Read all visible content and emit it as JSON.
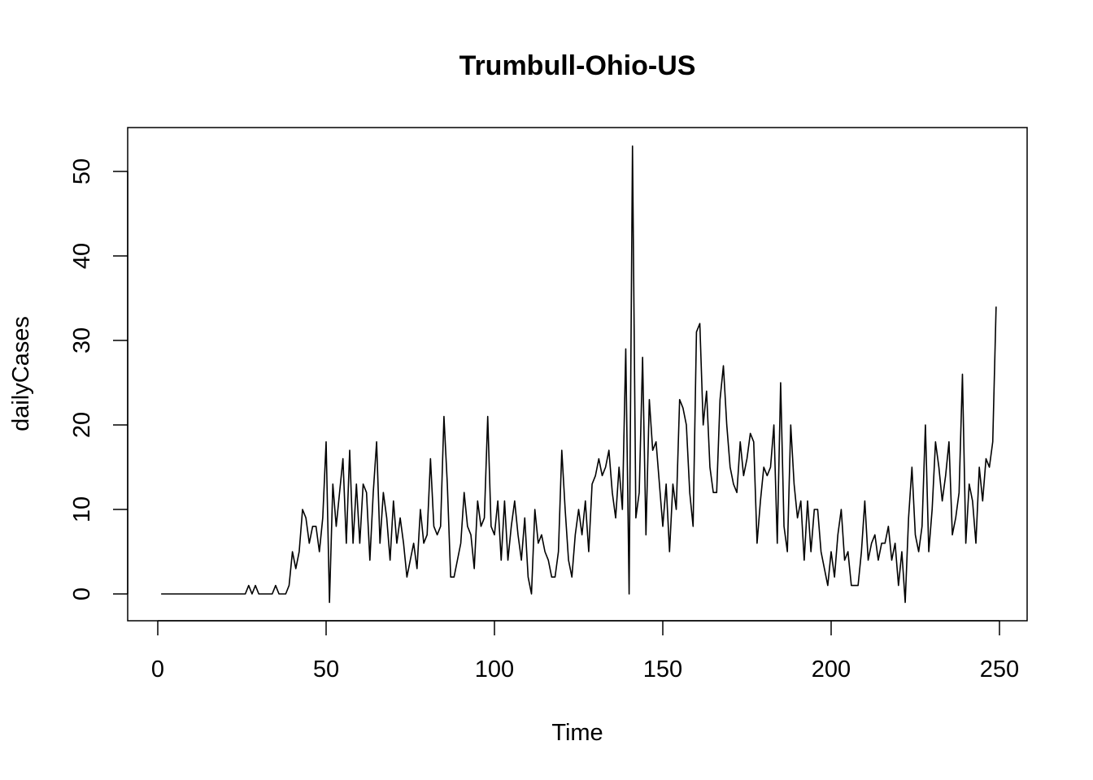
{
  "chart_data": {
    "type": "line",
    "title": "Trumbull-Ohio-US",
    "xlabel": "Time",
    "ylabel": "dailyCases",
    "xlim": [
      1,
      248
    ],
    "ylim": [
      -1,
      53
    ],
    "x_ticks": [
      0,
      50,
      100,
      150,
      200,
      250
    ],
    "y_ticks": [
      0,
      10,
      20,
      30,
      40,
      50
    ],
    "grid": false,
    "legend": "none",
    "line_color": "#000000",
    "series": [
      {
        "x_start": 1,
        "values": [
          0,
          0,
          0,
          0,
          0,
          0,
          0,
          0,
          0,
          0,
          0,
          0,
          0,
          0,
          0,
          0,
          0,
          0,
          0,
          0,
          0,
          0,
          0,
          0,
          0,
          0,
          1,
          0,
          1,
          0,
          0,
          0,
          0,
          0,
          1,
          0,
          0,
          0,
          1,
          5,
          3,
          5,
          10,
          9,
          6,
          8,
          8,
          5,
          9,
          18,
          -1,
          13,
          8,
          12,
          16,
          6,
          17,
          6,
          13,
          6,
          13,
          12,
          4,
          12,
          18,
          6,
          12,
          9,
          4,
          11,
          6,
          9,
          6,
          2,
          4,
          6,
          3,
          10,
          6,
          7,
          16,
          8,
          7,
          8,
          21,
          13,
          2,
          2,
          4,
          6,
          12,
          8,
          7,
          3,
          11,
          8,
          9,
          21,
          8,
          7,
          11,
          4,
          11,
          4,
          8,
          11,
          7,
          4,
          9,
          2,
          0,
          10,
          6,
          7,
          5,
          4,
          2,
          2,
          5,
          17,
          10,
          4,
          2,
          7,
          10,
          7,
          11,
          5,
          13,
          14,
          16,
          14,
          15,
          17,
          12,
          9,
          15,
          10,
          29,
          0,
          53,
          9,
          12,
          28,
          7,
          23,
          17,
          18,
          13,
          8,
          13,
          5,
          13,
          10,
          23,
          22,
          20,
          12,
          8,
          31,
          32,
          20,
          24,
          15,
          12,
          12,
          23,
          27,
          20,
          15,
          13,
          12,
          18,
          14,
          16,
          19,
          18,
          6,
          11,
          15,
          14,
          15,
          20,
          6,
          25,
          8,
          5,
          20,
          13,
          9,
          11,
          4,
          11,
          5,
          10,
          10,
          5,
          3,
          1,
          5,
          2,
          7,
          10,
          4,
          5,
          1,
          1,
          1,
          5,
          11,
          4,
          6,
          7,
          4,
          6,
          6,
          8,
          4,
          6,
          1,
          5,
          -1,
          9,
          15,
          7,
          5,
          8,
          20,
          5,
          10,
          18,
          15,
          11,
          14,
          18,
          7,
          9,
          12,
          26,
          6,
          13,
          11,
          6,
          15,
          11,
          16,
          15,
          18,
          34
        ]
      }
    ]
  }
}
